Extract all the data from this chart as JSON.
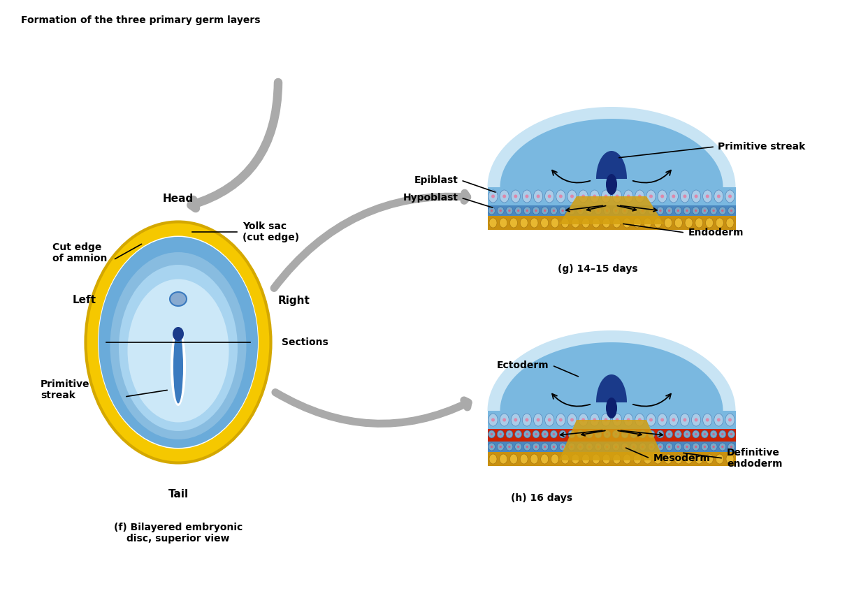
{
  "title": "Formation of the three primary germ layers",
  "title_fontsize": 10,
  "title_weight": "bold",
  "colors": {
    "bg_color": "#ffffff",
    "yellow_outer": "#f5c800",
    "yellow_dark": "#d4a800",
    "blue_light": "#a8d4f0",
    "blue_medium": "#6aabda",
    "blue_dark": "#3a7abf",
    "blue_navy": "#1a3a8a",
    "blue_deep": "#0d1f6e",
    "gold_migration": "#d4a000",
    "red_mesoderm": "#cc2200",
    "black": "#000000",
    "white": "#ffffff"
  },
  "labels": {
    "head": "Head",
    "tail": "Tail",
    "left": "Left",
    "right": "Right",
    "cut_edge_amnion": "Cut edge\nof amnion",
    "yolk_sac": "Yolk sac\n(cut edge)",
    "epiblast": "Epiblast",
    "hypoblast": "Hypoblast",
    "sections": "Sections",
    "primitive_streak_left": "Primitive\nstreak",
    "primitive_streak_top": "Primitive streak",
    "endoderm": "Endoderm",
    "ectoderm": "Ectoderm",
    "mesoderm": "Mesoderm",
    "def_endoderm": "Definitive\nendoderm",
    "caption_f": "(f) Bilayered embryonic\ndisc, superior view",
    "caption_g": "(g) 14–15 days",
    "caption_h": "(h) 16 days"
  }
}
